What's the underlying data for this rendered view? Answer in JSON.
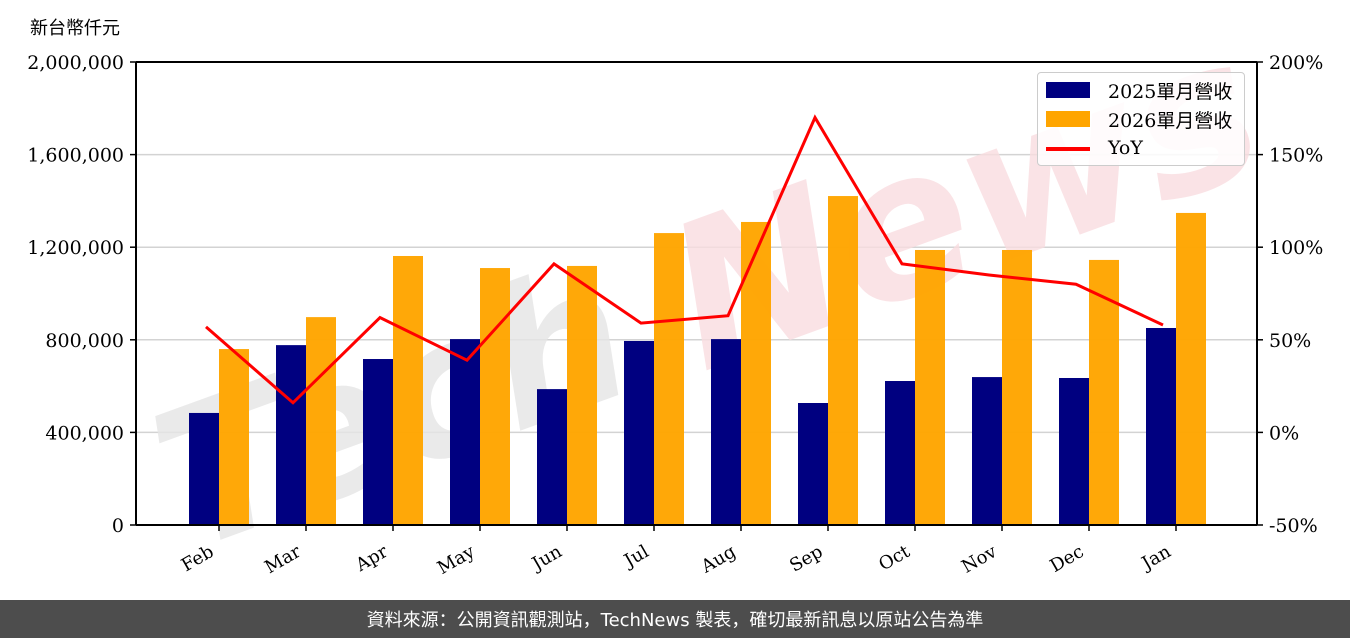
{
  "chart": {
    "unit_label": "新台幣仟元",
    "footer_text": "資料來源：公開資訊觀測站，TechNews 製表，確切最新訊息以原站公告為準",
    "watermark": "TechNews",
    "colors": {
      "series_2025": "#000080",
      "series_2026": "#ffa500",
      "yoy": "#ff0000",
      "grid": "#d3d3d3",
      "footer_bg": "#4d4d4d",
      "watermark_gray": "#e6e6e6",
      "watermark_pink": "#f9dde0"
    },
    "legend": [
      {
        "label": "2025單月營收",
        "kind": "bar",
        "color": "#000080"
      },
      {
        "label": "2026單月營收",
        "kind": "bar",
        "color": "#ffa500"
      },
      {
        "label": "YoY",
        "kind": "line",
        "color": "#ff0000"
      }
    ],
    "left_ticks": [
      "0",
      "400,000",
      "800,000",
      "1,200,000",
      "1,600,000",
      "2,000,000"
    ],
    "right_ticks": [
      "-50%",
      "0%",
      "50%",
      "100%",
      "150%",
      "200%"
    ]
  },
  "chart_data": {
    "type": "bar",
    "title": "",
    "xlabel": "",
    "ylabel": "新台幣仟元",
    "y2label": "YoY",
    "categories": [
      "Feb",
      "Mar",
      "Apr",
      "May",
      "Jun",
      "Jul",
      "Aug",
      "Sep",
      "Oct",
      "Nov",
      "Dec",
      "Jan"
    ],
    "series": [
      {
        "name": "2025單月營收",
        "type": "bar",
        "axis": "left",
        "values": [
          484000,
          777000,
          717000,
          803000,
          587000,
          795000,
          803000,
          527000,
          622000,
          639000,
          635000,
          851000
        ]
      },
      {
        "name": "2026單月營收",
        "type": "bar",
        "axis": "left",
        "values": [
          760000,
          898000,
          1162000,
          1110000,
          1119000,
          1261000,
          1309000,
          1421000,
          1188000,
          1188000,
          1145000,
          1348000
        ]
      },
      {
        "name": "YoY",
        "type": "line",
        "axis": "right",
        "unit": "%",
        "values": [
          57,
          16,
          62,
          39,
          91,
          59,
          63,
          170,
          91,
          85,
          80,
          58
        ]
      }
    ],
    "ylim": [
      0,
      2000000
    ],
    "y2lim": [
      -50,
      200
    ],
    "yticks": [
      0,
      400000,
      800000,
      1200000,
      1600000,
      2000000
    ],
    "y2ticks": [
      -50,
      0,
      50,
      100,
      150,
      200
    ],
    "grid": true,
    "legend_position": "upper right"
  }
}
